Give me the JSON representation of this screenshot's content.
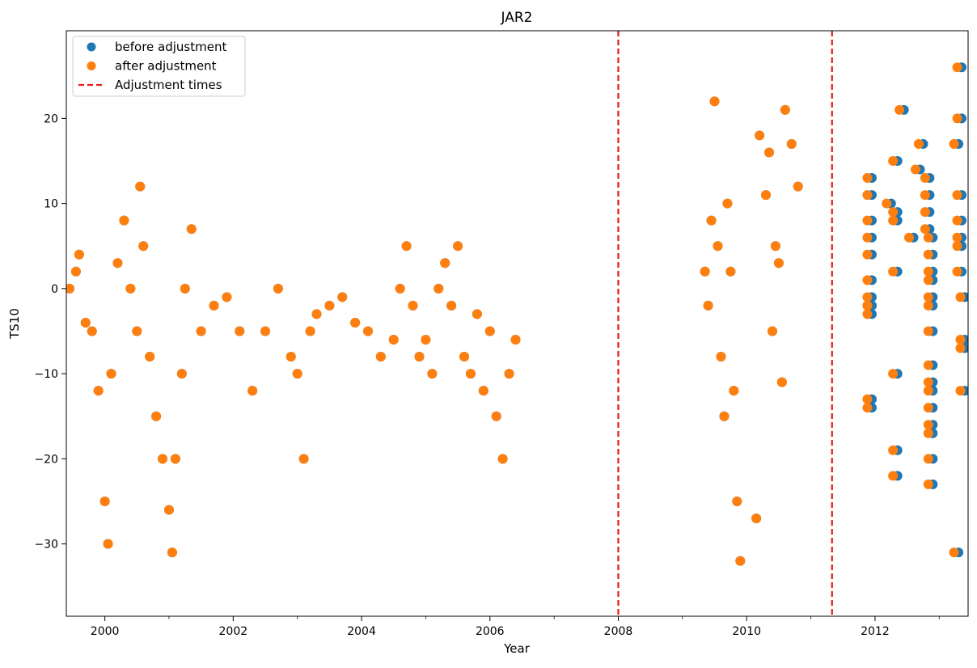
{
  "chart_data": {
    "type": "scatter",
    "title": "JAR2",
    "xlabel": "Year",
    "ylabel": "TS10",
    "xlim": [
      1999.4,
      2013.45
    ],
    "ylim": [
      -38.5,
      30.3
    ],
    "x_ticks": [
      2000,
      2002,
      2004,
      2006,
      2008,
      2010,
      2012
    ],
    "x_tick_labels": [
      "2000",
      "2002",
      "2004",
      "2006",
      "2008",
      "2010",
      "2012"
    ],
    "y_ticks": [
      -30,
      -20,
      -10,
      0,
      10,
      20
    ],
    "y_tick_labels": [
      "−30",
      "−20",
      "−10",
      "0",
      "10",
      "20"
    ],
    "grid": false,
    "legend": {
      "placement": "top-left",
      "entries": [
        {
          "label": "before adjustment",
          "color": "#1f77b4",
          "marker": "circle"
        },
        {
          "label": "after adjustment",
          "color": "#ff7f0e",
          "marker": "circle"
        },
        {
          "label": "Adjustment times",
          "color": "#e41a1c",
          "marker": "dashed-line"
        }
      ]
    },
    "adjustment_times": [
      2008.0,
      2011.33
    ],
    "adjustment_offset_years": 0.07,
    "series": [
      {
        "name": "before adjustment",
        "color": "#1f77b4",
        "x": [
          1999.45,
          1999.55,
          1999.6,
          1999.7,
          1999.8,
          1999.9,
          2000.0,
          2000.05,
          2000.1,
          2000.2,
          2000.3,
          2000.4,
          2000.5,
          2000.55,
          2000.6,
          2000.7,
          2000.8,
          2000.9,
          2001.0,
          2001.05,
          2001.1,
          2001.2,
          2001.25,
          2001.35,
          2001.5,
          2001.7,
          2001.9,
          2002.1,
          2002.3,
          2002.5,
          2002.7,
          2002.9,
          2003.0,
          2003.1,
          2003.2,
          2003.3,
          2003.5,
          2003.7,
          2003.9,
          2004.1,
          2004.3,
          2004.5,
          2004.6,
          2004.7,
          2004.8,
          2004.9,
          2005.0,
          2005.1,
          2005.2,
          2005.3,
          2005.4,
          2005.5,
          2005.6,
          2005.7,
          2005.8,
          2005.9,
          2006.0,
          2006.1,
          2006.2,
          2006.3,
          2006.4,
          2009.35,
          2009.4,
          2009.45,
          2009.5,
          2009.55,
          2009.6,
          2009.65,
          2009.7,
          2009.75,
          2009.8,
          2009.85,
          2009.9,
          2010.15,
          2010.2,
          2010.3,
          2010.35,
          2010.4,
          2010.45,
          2010.5,
          2010.55,
          2010.6,
          2010.7,
          2010.8,
          2011.95,
          2011.95,
          2011.95,
          2011.95,
          2011.95,
          2011.95,
          2011.95,
          2011.95,
          2011.95,
          2011.95,
          2011.95,
          2011.95,
          2012.25,
          2012.35,
          2012.35,
          2012.35,
          2012.35,
          2012.35,
          2012.35,
          2012.35,
          2012.45,
          2012.6,
          2012.7,
          2012.75,
          2012.85,
          2012.85,
          2012.85,
          2012.85,
          2012.9,
          2012.9,
          2012.9,
          2012.9,
          2012.9,
          2012.9,
          2012.9,
          2012.9,
          2012.9,
          2012.9,
          2012.9,
          2012.9,
          2012.9,
          2012.9,
          2012.9,
          2013.3,
          2013.3,
          2013.35,
          2013.35,
          2013.35,
          2013.35,
          2013.35,
          2013.35,
          2013.35,
          2013.4,
          2013.4,
          2013.4,
          2013.4
        ],
        "y": [
          0,
          2,
          4,
          -4,
          -5,
          -12,
          -25,
          -30,
          -10,
          3,
          8,
          0,
          -5,
          12,
          5,
          -8,
          -15,
          -20,
          -26,
          -31,
          -20,
          -10,
          0,
          7,
          -5,
          -2,
          -1,
          -5,
          -12,
          -5,
          0,
          -8,
          -10,
          -20,
          -5,
          -3,
          -2,
          -1,
          -4,
          -5,
          -8,
          -6,
          0,
          5,
          -2,
          -8,
          -6,
          -10,
          0,
          3,
          -2,
          5,
          -8,
          -10,
          -3,
          -12,
          -5,
          -15,
          -20,
          -10,
          -6,
          2,
          -2,
          8,
          22,
          5,
          -8,
          -15,
          10,
          2,
          -12,
          -25,
          -32,
          -27,
          18,
          11,
          16,
          -5,
          5,
          3,
          -11,
          21,
          17,
          12,
          8,
          11,
          13,
          6,
          4,
          1,
          -1,
          -2,
          -13,
          -14,
          -2,
          -3,
          10,
          15,
          9,
          -10,
          -19,
          -22,
          2,
          8,
          21,
          6,
          14,
          17,
          13,
          11,
          9,
          7,
          6,
          4,
          2,
          1,
          -1,
          -2,
          -5,
          -9,
          -11,
          -12,
          -14,
          -16,
          -17,
          -20,
          -23,
          -31,
          17,
          11,
          26,
          20,
          8,
          6,
          5,
          2,
          -7,
          -6,
          -12,
          -1
        ]
      },
      {
        "name": "after adjustment",
        "color": "#ff7f0e",
        "x": [
          1999.45,
          1999.55,
          1999.6,
          1999.7,
          1999.8,
          1999.9,
          2000.0,
          2000.05,
          2000.1,
          2000.2,
          2000.3,
          2000.4,
          2000.5,
          2000.55,
          2000.6,
          2000.7,
          2000.8,
          2000.9,
          2001.0,
          2001.05,
          2001.1,
          2001.2,
          2001.25,
          2001.35,
          2001.5,
          2001.7,
          2001.9,
          2002.1,
          2002.3,
          2002.5,
          2002.7,
          2002.9,
          2003.0,
          2003.1,
          2003.2,
          2003.3,
          2003.5,
          2003.7,
          2003.9,
          2004.1,
          2004.3,
          2004.5,
          2004.6,
          2004.7,
          2004.8,
          2004.9,
          2005.0,
          2005.1,
          2005.2,
          2005.3,
          2005.4,
          2005.5,
          2005.6,
          2005.7,
          2005.8,
          2005.9,
          2006.0,
          2006.1,
          2006.2,
          2006.3,
          2006.4,
          2009.35,
          2009.4,
          2009.45,
          2009.5,
          2009.55,
          2009.6,
          2009.65,
          2009.7,
          2009.75,
          2009.8,
          2009.85,
          2009.9,
          2010.15,
          2010.2,
          2010.3,
          2010.35,
          2010.4,
          2010.45,
          2010.5,
          2010.55,
          2010.6,
          2010.7,
          2010.8,
          2011.88,
          2011.88,
          2011.88,
          2011.88,
          2011.88,
          2011.88,
          2011.88,
          2011.88,
          2011.88,
          2011.88,
          2011.88,
          2011.88,
          2012.18,
          2012.28,
          2012.28,
          2012.28,
          2012.28,
          2012.28,
          2012.28,
          2012.28,
          2012.38,
          2012.53,
          2012.63,
          2012.68,
          2012.78,
          2012.78,
          2012.78,
          2012.78,
          2012.83,
          2012.83,
          2012.83,
          2012.83,
          2012.83,
          2012.83,
          2012.83,
          2012.83,
          2012.83,
          2012.83,
          2012.83,
          2012.83,
          2012.83,
          2012.83,
          2012.83,
          2013.23,
          2013.23,
          2013.28,
          2013.28,
          2013.28,
          2013.28,
          2013.28,
          2013.28,
          2013.28,
          2013.33,
          2013.33,
          2013.33,
          2013.33
        ],
        "y": [
          0,
          2,
          4,
          -4,
          -5,
          -12,
          -25,
          -30,
          -10,
          3,
          8,
          0,
          -5,
          12,
          5,
          -8,
          -15,
          -20,
          -26,
          -31,
          -20,
          -10,
          0,
          7,
          -5,
          -2,
          -1,
          -5,
          -12,
          -5,
          0,
          -8,
          -10,
          -20,
          -5,
          -3,
          -2,
          -1,
          -4,
          -5,
          -8,
          -6,
          0,
          5,
          -2,
          -8,
          -6,
          -10,
          0,
          3,
          -2,
          5,
          -8,
          -10,
          -3,
          -12,
          -5,
          -15,
          -20,
          -10,
          -6,
          2,
          -2,
          8,
          22,
          5,
          -8,
          -15,
          10,
          2,
          -12,
          -25,
          -32,
          -27,
          18,
          11,
          16,
          -5,
          5,
          3,
          -11,
          21,
          17,
          12,
          8,
          11,
          13,
          6,
          4,
          1,
          -1,
          -2,
          -13,
          -14,
          -2,
          -3,
          10,
          15,
          9,
          -10,
          -19,
          -22,
          2,
          8,
          21,
          6,
          14,
          17,
          13,
          11,
          9,
          7,
          6,
          4,
          2,
          1,
          -1,
          -2,
          -5,
          -9,
          -11,
          -12,
          -14,
          -16,
          -17,
          -20,
          -23,
          -31,
          17,
          11,
          26,
          20,
          8,
          6,
          5,
          2,
          -7,
          -6,
          -12,
          -1
        ]
      }
    ]
  }
}
